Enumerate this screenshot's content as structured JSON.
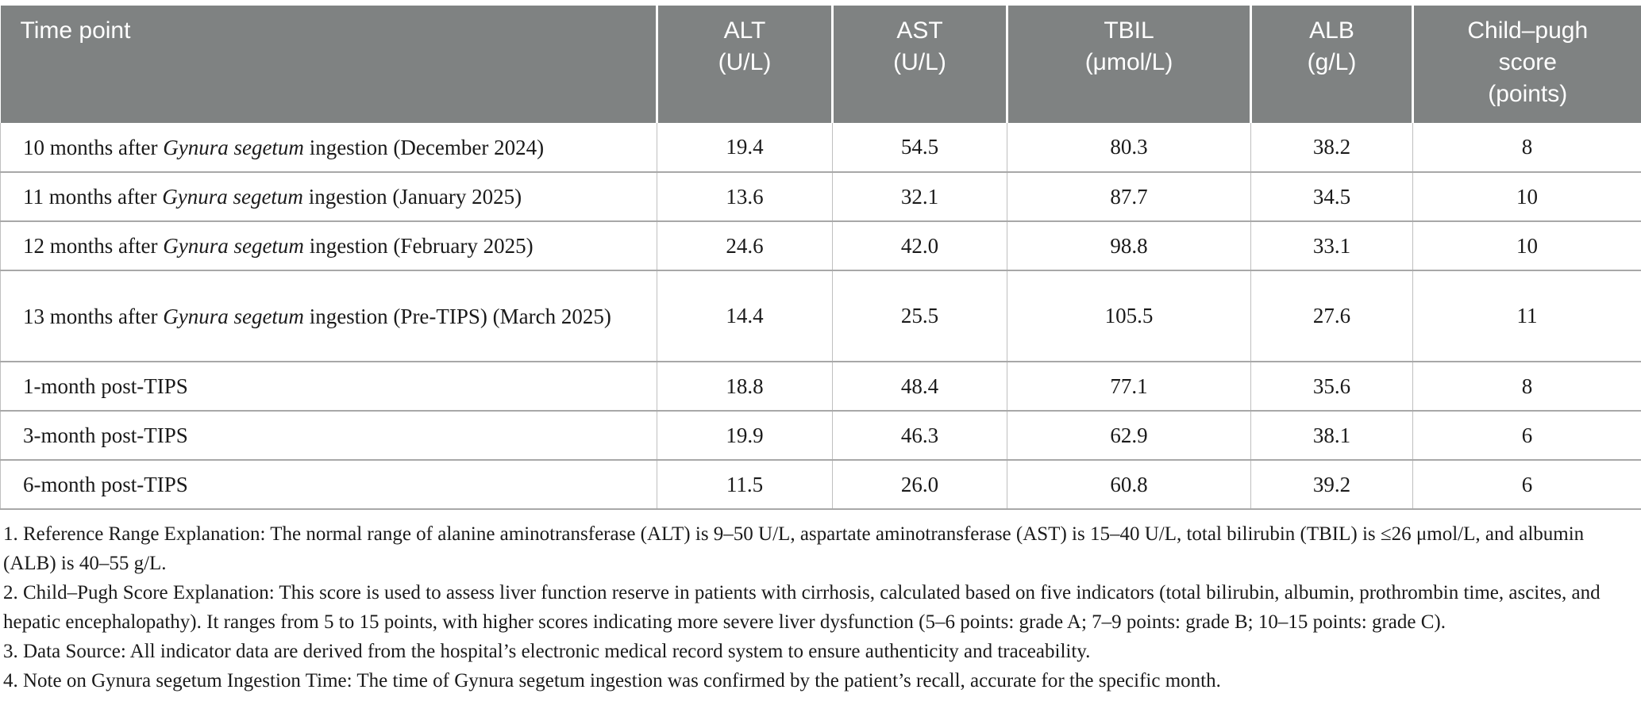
{
  "table": {
    "header": {
      "bg_color": "#7f8282",
      "text_color": "#ffffff",
      "columns": [
        {
          "lines": [
            "Time point"
          ]
        },
        {
          "lines": [
            "ALT",
            "(U/L)"
          ]
        },
        {
          "lines": [
            "AST",
            "(U/L)"
          ]
        },
        {
          "lines": [
            "TBIL",
            "(μmol/L)"
          ]
        },
        {
          "lines": [
            "ALB",
            "(g/L)"
          ]
        },
        {
          "lines": [
            "Child–pugh",
            "score",
            "(points)"
          ]
        }
      ]
    },
    "rows": [
      {
        "time_point": "10 months after *Gynura segetum* ingestion (December 2024)",
        "alt": "19.4",
        "ast": "54.5",
        "tbil": "80.3",
        "alb": "38.2",
        "child_pugh": "8"
      },
      {
        "time_point": "11 months after *Gynura segetum* ingestion (January 2025)",
        "alt": "13.6",
        "ast": "32.1",
        "tbil": "87.7",
        "alb": "34.5",
        "child_pugh": "10"
      },
      {
        "time_point": "12 months after *Gynura segetum* ingestion (February 2025)",
        "alt": "24.6",
        "ast": "42.0",
        "tbil": "98.8",
        "alb": "33.1",
        "child_pugh": "10"
      },
      {
        "time_point": "13 months after *Gynura segetum* ingestion (Pre-TIPS) (March 2025)",
        "alt": "14.4",
        "ast": "25.5",
        "tbil": "105.5",
        "alb": "27.6",
        "child_pugh": "11"
      },
      {
        "time_point": "1-month post-TIPS",
        "alt": "18.8",
        "ast": "48.4",
        "tbil": "77.1",
        "alb": "35.6",
        "child_pugh": "8"
      },
      {
        "time_point": "3-month post-TIPS",
        "alt": "19.9",
        "ast": "46.3",
        "tbil": "62.9",
        "alb": "38.1",
        "child_pugh": "6"
      },
      {
        "time_point": "6-month post-TIPS",
        "alt": "11.5",
        "ast": "26.0",
        "tbil": "60.8",
        "alb": "39.2",
        "child_pugh": "6"
      }
    ]
  },
  "footnotes": [
    "1. Reference Range Explanation: The normal range of alanine aminotransferase (ALT) is 9–50 U/L, aspartate aminotransferase (AST) is 15–40 U/L, total bilirubin (TBIL) is ≤26 μmol/L, and albumin (ALB) is 40–55 g/L.",
    "2. Child–Pugh Score Explanation: This score is used to assess liver function reserve in patients with cirrhosis, calculated based on five indicators (total bilirubin, albumin, prothrombin time, ascites, and hepatic encephalopathy). It ranges from 5 to 15 points, with higher scores indicating more severe liver dysfunction (5–6 points: grade A; 7–9 points: grade B; 10–15 points: grade C).",
    "3. Data Source: All indicator data are derived from the hospital’s electronic medical record system to ensure authenticity and traceability.",
    "4. Note on Gynura segetum Ingestion Time: The time of Gynura segetum ingestion was confirmed by the patient’s recall, accurate for the specific month."
  ]
}
